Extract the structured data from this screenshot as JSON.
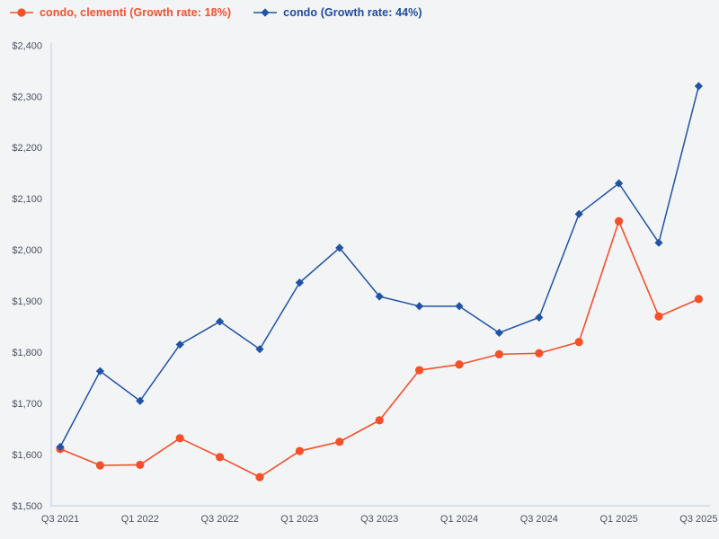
{
  "page": {
    "background_color": "#f2f4f6",
    "axis_line_color": "#c9d3e4",
    "tick_label_color": "#4d5360"
  },
  "legend": {
    "items": [
      {
        "label": "condo, clementi (Growth rate: 18%)",
        "color": "#f4502a",
        "marker": "circle"
      },
      {
        "label": "condo (Growth rate: 44%)",
        "color": "#2153a4",
        "text_color": "#1e4b9e",
        "marker": "diamond"
      }
    ]
  },
  "chart_data": {
    "type": "line",
    "title": "",
    "xlabel": "",
    "ylabel": "",
    "x": [
      "Q3 2021",
      "Q4 2021",
      "Q1 2022",
      "Q2 2022",
      "Q3 2022",
      "Q4 2022",
      "Q1 2023",
      "Q2 2023",
      "Q3 2023",
      "Q4 2023",
      "Q1 2024",
      "Q2 2024",
      "Q3 2024",
      "Q4 2024",
      "Q1 2025",
      "Q2 2025",
      "Q3 2025"
    ],
    "x_tick_labels": [
      "Q3 2021",
      "Q1 2022",
      "Q3 2022",
      "Q1 2023",
      "Q3 2023",
      "Q1 2024",
      "Q3 2024",
      "Q1 2025",
      "Q3 2025"
    ],
    "x_tick_every": 2,
    "ylim": [
      1500,
      2400
    ],
    "y_tick_step": 100,
    "y_tick_labels": [
      "$1,500",
      "$1,600",
      "$1,700",
      "$1,800",
      "$1,900",
      "$2,000",
      "$2,100",
      "$2,200",
      "$2,300",
      "$2,400"
    ],
    "grid": false,
    "legend_position": "top-left",
    "series": [
      {
        "name": "condo, clementi (Growth rate: 18%)",
        "color": "#f4502a",
        "marker": "circle",
        "values": [
          1611,
          1579,
          1580,
          1632,
          1595,
          1556,
          1607,
          1625,
          1667,
          1765,
          1776,
          1796,
          1798,
          1820,
          2056,
          1870,
          1904
        ]
      },
      {
        "name": "condo (Growth rate: 44%)",
        "color": "#2153a4",
        "marker": "diamond",
        "values": [
          1615,
          1763,
          1705,
          1815,
          1860,
          1806,
          1936,
          2004,
          1909,
          1890,
          1890,
          1838,
          1868,
          2070,
          2130,
          2014,
          2320
        ]
      }
    ]
  }
}
